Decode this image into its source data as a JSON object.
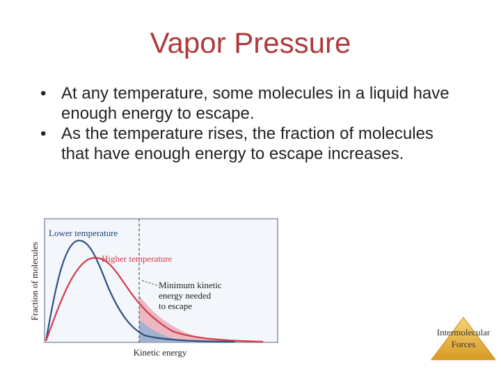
{
  "slide": {
    "title": "Vapor Pressure",
    "bullets": [
      "At any temperature, some molecules in a liquid have enough energy to escape.",
      "As the temperature rises, the fraction of molecules that have enough energy to escape increases."
    ],
    "bullet_glyph": "•"
  },
  "figure": {
    "ylabel": "Fraction of molecules",
    "xlabel": "Kinetic energy",
    "lower_label": "Lower temperature",
    "higher_label": "Higher temperature",
    "threshold_label": [
      "Minimum kinetic",
      "energy needed",
      "to escape"
    ],
    "colors": {
      "lower": "#2b4f7e",
      "higher": "#d23a4a",
      "label": "#1f3f73",
      "frame": "#8a94a6",
      "panel": "#f3f6fb"
    }
  },
  "badge": {
    "line1": "Intermolecular",
    "line2": "Forces",
    "color": "#e8b23a"
  }
}
